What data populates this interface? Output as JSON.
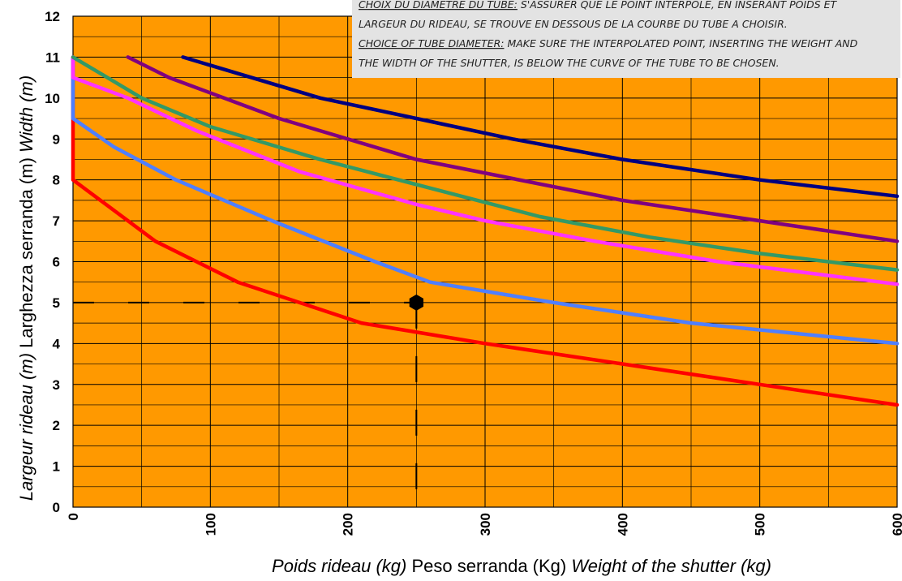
{
  "chart_data": {
    "type": "line",
    "xlim": [
      0,
      600
    ],
    "ylim": [
      0,
      12
    ],
    "x_ticks": [
      0,
      100,
      200,
      300,
      400,
      500,
      600
    ],
    "y_ticks": [
      0,
      1,
      2,
      3,
      4,
      5,
      6,
      7,
      8,
      9,
      10,
      11,
      12
    ],
    "grid": true,
    "x_minor_step": 50,
    "y_minor_step": 0.5,
    "background": "#ff9900",
    "xlabel": {
      "fr": "Poids rideau (kg)",
      "it": "Peso serranda (Kg)",
      "en": "Weight of the shutter (kg)"
    },
    "ylabel": {
      "fr": "Largeur rideau (m)",
      "it": "Larghezza serranda (m)",
      "en": "Width (m)"
    },
    "note": {
      "line1_underlined": "CHOIX DU DIAMETRE DU TUBE:",
      "line1_rest": " S'ASSURER QUE LE POINT INTERPOLE, EN INSERANT POIDS ET",
      "line2": "LARGEUR DU RIDEAU, SE TROUVE EN  DESSOUS DE LA COURBE DU TUBE A CHOISIR.",
      "line3_underlined": "CHOICE OF TUBE DIAMETER:",
      "line3_rest": " MAKE SURE THE INTERPOLATED POINT, INSERTING THE WEIGHT AND",
      "line4": "THE WIDTH OF THE SHUTTER, IS BELOW THE CURVE OF THE TUBE TO BE CHOSEN."
    },
    "example_point": {
      "x": 250,
      "y": 5
    },
    "series": [
      {
        "color": "#ff0000",
        "points": [
          [
            0,
            11
          ],
          [
            0,
            8
          ],
          [
            20,
            7.5
          ],
          [
            60,
            6.5
          ],
          [
            120,
            5.5
          ],
          [
            210,
            4.5
          ],
          [
            300,
            4
          ],
          [
            400,
            3.5
          ],
          [
            500,
            3
          ],
          [
            600,
            2.5
          ]
        ]
      },
      {
        "color": "#4f7fff",
        "points": [
          [
            0,
            11
          ],
          [
            0,
            9.5
          ],
          [
            30,
            8.8
          ],
          [
            75,
            8
          ],
          [
            145,
            7
          ],
          [
            220,
            6
          ],
          [
            260,
            5.5
          ],
          [
            350,
            5
          ],
          [
            450,
            4.5
          ],
          [
            600,
            4
          ]
        ]
      },
      {
        "color": "#ff33ff",
        "points": [
          [
            0,
            11
          ],
          [
            0,
            10.5
          ],
          [
            40,
            10
          ],
          [
            90,
            9.2
          ],
          [
            165,
            8.2
          ],
          [
            250,
            7.4
          ],
          [
            300,
            7
          ],
          [
            380,
            6.5
          ],
          [
            470,
            6
          ],
          [
            600,
            5.45
          ]
        ]
      },
      {
        "color": "#339966",
        "points": [
          [
            0,
            11
          ],
          [
            50,
            10
          ],
          [
            100,
            9.3
          ],
          [
            180,
            8.5
          ],
          [
            260,
            7.8
          ],
          [
            340,
            7.1
          ],
          [
            420,
            6.6
          ],
          [
            500,
            6.2
          ],
          [
            600,
            5.8
          ]
        ]
      },
      {
        "color": "#800080",
        "points": [
          [
            40,
            11
          ],
          [
            70,
            10.5
          ],
          [
            150,
            9.5
          ],
          [
            250,
            8.5
          ],
          [
            400,
            7.5
          ],
          [
            500,
            7
          ],
          [
            600,
            6.5
          ]
        ]
      },
      {
        "color": "#000080",
        "points": [
          [
            80,
            11
          ],
          [
            180,
            10
          ],
          [
            250,
            9.5
          ],
          [
            320,
            9
          ],
          [
            400,
            8.5
          ],
          [
            500,
            8
          ],
          [
            600,
            7.6
          ]
        ]
      }
    ]
  }
}
